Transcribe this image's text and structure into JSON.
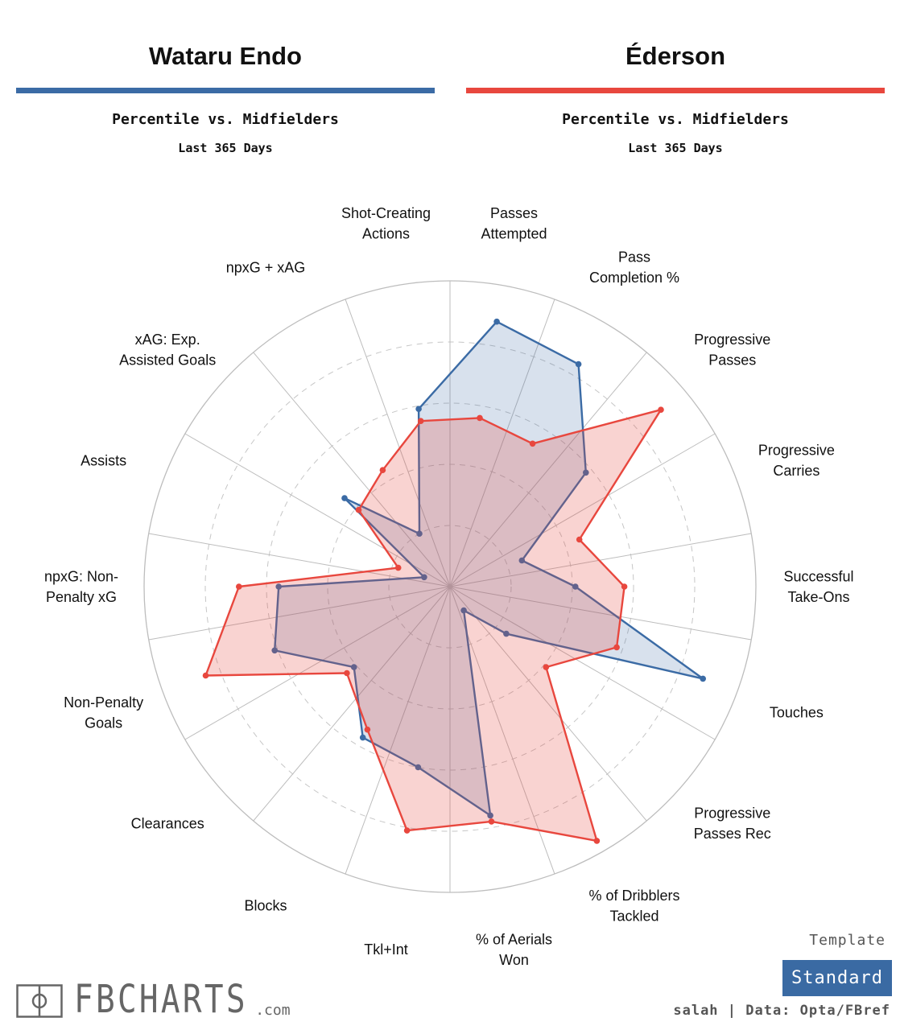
{
  "header": {
    "player1": {
      "name": "Wataru Endo",
      "color": "#3b6ba5",
      "subtitle": "Percentile vs. Midfielders",
      "period": "Last 365 Days"
    },
    "player2": {
      "name": "Éderson",
      "color": "#e8473e",
      "subtitle": "Percentile vs. Midfielders",
      "period": "Last 365 Days"
    }
  },
  "footer": {
    "template_label": "Template",
    "template_value": "Standard",
    "credit": "salah | Data: Opta/FBref",
    "logo_text": "FBCHARTS",
    "logo_domain": ".com",
    "logo_icon": "pitch-icon"
  },
  "chart_data": {
    "type": "radar",
    "axes": [
      "Passes\nAttempted",
      "Pass\nCompletion %",
      "Progressive\nPasses",
      "Progressive\nCarries",
      "Successful\nTake-Ons",
      "Touches",
      "Progressive\nPasses Rec",
      "% of Dribblers\nTackled",
      "% of Aerials\nWon",
      "Tkl+Int",
      "Blocks",
      "Clearances",
      "Non-Penalty\nGoals",
      "npxG: Non-\nPenalty xG",
      "Assists",
      "xAG: Exp.\nAssisted Goals",
      "npxG + xAG",
      "Shot-Creating\nActions"
    ],
    "range": [
      0,
      100
    ],
    "grid_rings": [
      20,
      40,
      60,
      80,
      100
    ],
    "series": [
      {
        "name": "Wataru Endo",
        "color": "#3b6ba5",
        "values": [
          88,
          84,
          58,
          25,
          41,
          88,
          24,
          9,
          76,
          60,
          57,
          41,
          61,
          56,
          9,
          45,
          20,
          59
        ]
      },
      {
        "name": "Éderson",
        "color": "#e8473e",
        "values": [
          56,
          54,
          90,
          45,
          57,
          58,
          41,
          96,
          78,
          81,
          54,
          44,
          85,
          69,
          18,
          39,
          44,
          55
        ]
      }
    ]
  }
}
